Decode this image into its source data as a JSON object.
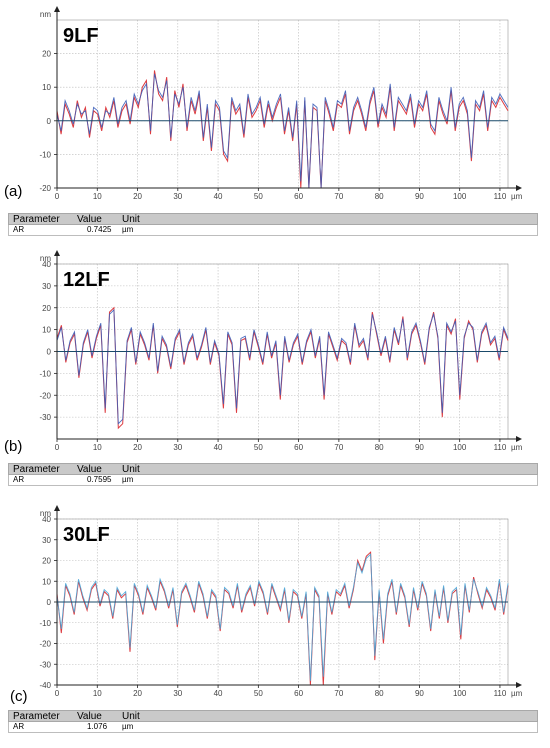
{
  "chart_data": [
    {
      "type": "line",
      "panel_letter": "(a)",
      "sample_label": "9LF",
      "y_unit": "nm",
      "x_unit": "µm",
      "xlim": [
        0,
        112
      ],
      "ylim": [
        -20,
        30
      ],
      "x_ticks": [
        0,
        10,
        20,
        30,
        40,
        50,
        60,
        70,
        80,
        90,
        100,
        110
      ],
      "y_ticks": [
        20,
        10,
        0,
        -10,
        -20
      ],
      "grid": true,
      "series": [
        {
          "color": "#d9262b",
          "values": [
            3,
            -4,
            5,
            2,
            -2,
            6,
            1,
            4,
            -5,
            3,
            2,
            -3,
            4,
            1,
            6,
            -2,
            3,
            5,
            -1,
            7,
            4,
            10,
            12,
            -4,
            15,
            8,
            6,
            13,
            -6,
            9,
            4,
            11,
            -3,
            6,
            2,
            8,
            -6,
            4,
            -9,
            5,
            3,
            -10,
            -12,
            6,
            2,
            4,
            -5,
            7,
            1,
            3,
            6,
            -2,
            5,
            0,
            4,
            7,
            -4,
            3,
            -6,
            5,
            -20,
            6,
            -24,
            4,
            3,
            -22,
            6,
            2,
            -3,
            5,
            4,
            8,
            -4,
            3,
            6,
            2,
            -3,
            5,
            9,
            -2,
            4,
            1,
            10,
            -3,
            6,
            4,
            2,
            7,
            -2,
            5,
            3,
            8,
            -2,
            -4,
            6,
            2,
            -1,
            9,
            -3,
            4,
            6,
            2,
            -12,
            5,
            3,
            8,
            -3,
            6,
            4,
            7,
            5,
            3
          ]
        },
        {
          "color": "#3b5db8",
          "values": [
            2,
            -3,
            6,
            3,
            -1,
            5,
            2,
            3,
            -4,
            4,
            3,
            -2,
            3,
            2,
            7,
            -1,
            4,
            6,
            0,
            8,
            5,
            9,
            11,
            -3,
            14,
            9,
            7,
            12,
            -5,
            8,
            5,
            10,
            -2,
            7,
            3,
            9,
            -5,
            5,
            -8,
            6,
            4,
            -9,
            -11,
            7,
            3,
            5,
            -4,
            8,
            2,
            4,
            7,
            -1,
            6,
            1,
            5,
            8,
            -3,
            4,
            -5,
            6,
            -18,
            7,
            -22,
            5,
            4,
            -20,
            7,
            3,
            -2,
            6,
            5,
            9,
            -3,
            4,
            7,
            3,
            -2,
            6,
            10,
            -1,
            5,
            2,
            11,
            -2,
            7,
            5,
            3,
            8,
            -1,
            6,
            4,
            9,
            -1,
            -3,
            7,
            3,
            0,
            10,
            -2,
            5,
            7,
            3,
            -11,
            6,
            4,
            9,
            -2,
            7,
            5,
            8,
            6,
            4
          ]
        }
      ]
    },
    {
      "type": "line",
      "panel_letter": "(b)",
      "sample_label": "12LF",
      "y_unit": "nm",
      "x_unit": "µm",
      "xlim": [
        0,
        112
      ],
      "ylim": [
        -40,
        40
      ],
      "x_ticks": [
        0,
        10,
        20,
        30,
        40,
        50,
        60,
        70,
        80,
        90,
        100,
        110
      ],
      "y_ticks": [
        40,
        30,
        20,
        10,
        0,
        -10,
        -20,
        -30
      ],
      "grid": true,
      "series": [
        {
          "color": "#d9262b",
          "values": [
            6,
            12,
            -5,
            4,
            8,
            -12,
            3,
            9,
            -3,
            6,
            12,
            -28,
            18,
            20,
            -35,
            -33,
            4,
            10,
            -6,
            8,
            3,
            -4,
            12,
            -10,
            6,
            2,
            -8,
            5,
            9,
            -6,
            3,
            7,
            -4,
            2,
            10,
            -6,
            4,
            -2,
            -26,
            8,
            3,
            -28,
            5,
            6,
            -4,
            9,
            2,
            -6,
            8,
            -3,
            4,
            -22,
            6,
            -5,
            3,
            7,
            -6,
            4,
            9,
            -3,
            6,
            -22,
            8,
            2,
            -4,
            5,
            3,
            -6,
            12,
            2,
            5,
            -4,
            18,
            8,
            -2,
            6,
            -5,
            10,
            3,
            16,
            -4,
            8,
            12,
            4,
            -6,
            10,
            18,
            6,
            -30,
            12,
            8,
            15,
            -22,
            6,
            14,
            10,
            -5,
            8,
            12,
            3,
            6,
            -4,
            10,
            5
          ]
        },
        {
          "color": "#3b5db8",
          "values": [
            5,
            11,
            -4,
            5,
            9,
            -11,
            4,
            10,
            -2,
            7,
            13,
            -26,
            17,
            19,
            -33,
            -31,
            5,
            11,
            -5,
            9,
            4,
            -3,
            13,
            -9,
            7,
            3,
            -7,
            6,
            10,
            -5,
            4,
            8,
            -3,
            3,
            11,
            -5,
            5,
            -1,
            -24,
            9,
            4,
            -26,
            6,
            7,
            -3,
            10,
            3,
            -5,
            9,
            -2,
            5,
            -20,
            7,
            -4,
            4,
            8,
            -5,
            5,
            10,
            -2,
            7,
            -20,
            9,
            3,
            -3,
            6,
            4,
            -5,
            13,
            3,
            6,
            -3,
            17,
            9,
            -1,
            7,
            -4,
            11,
            4,
            15,
            -3,
            9,
            13,
            5,
            -5,
            11,
            17,
            7,
            -28,
            13,
            9,
            14,
            -20,
            7,
            13,
            11,
            -4,
            9,
            13,
            4,
            7,
            -3,
            11,
            6
          ]
        }
      ]
    },
    {
      "type": "line",
      "panel_letter": "(c)",
      "sample_label": "30LF",
      "y_unit": "nm",
      "x_unit": "µm",
      "xlim": [
        0,
        112
      ],
      "ylim": [
        -40,
        40
      ],
      "x_ticks": [
        0,
        10,
        20,
        30,
        40,
        50,
        60,
        70,
        80,
        90,
        100,
        110
      ],
      "y_ticks": [
        40,
        30,
        20,
        10,
        0,
        -10,
        -20,
        -30,
        -40
      ],
      "grid": true,
      "series": [
        {
          "color": "#d9262b",
          "values": [
            4,
            -15,
            8,
            3,
            -6,
            10,
            2,
            -4,
            6,
            9,
            -2,
            5,
            3,
            -8,
            6,
            2,
            4,
            -24,
            8,
            3,
            -6,
            7,
            2,
            -4,
            10,
            5,
            -3,
            6,
            -12,
            4,
            8,
            2,
            -5,
            9,
            3,
            -8,
            5,
            2,
            -14,
            6,
            4,
            -3,
            8,
            -5,
            3,
            7,
            -2,
            9,
            4,
            -6,
            8,
            2,
            -4,
            6,
            -10,
            5,
            3,
            -8,
            4,
            -42,
            6,
            2,
            -40,
            4,
            -6,
            5,
            3,
            8,
            -3,
            6,
            20,
            15,
            22,
            24,
            -28,
            5,
            -20,
            3,
            10,
            -6,
            8,
            2,
            -12,
            6,
            -4,
            9,
            3,
            -14,
            5,
            -8,
            7,
            -10,
            4,
            6,
            -18,
            8,
            -5,
            12,
            4,
            -3,
            6,
            2,
            -4,
            10,
            -6,
            8
          ]
        },
        {
          "color": "#4aa6d8",
          "values": [
            3,
            -13,
            9,
            4,
            -5,
            11,
            3,
            -3,
            7,
            10,
            -1,
            6,
            4,
            -7,
            7,
            3,
            5,
            -22,
            9,
            4,
            -5,
            8,
            3,
            -3,
            11,
            6,
            -2,
            7,
            -11,
            5,
            9,
            3,
            -4,
            10,
            4,
            -7,
            6,
            3,
            -13,
            7,
            5,
            -2,
            9,
            -4,
            4,
            8,
            -1,
            10,
            5,
            -5,
            9,
            3,
            -3,
            7,
            -9,
            6,
            4,
            -7,
            5,
            -38,
            7,
            3,
            -36,
            5,
            -5,
            6,
            4,
            9,
            -2,
            7,
            19,
            14,
            21,
            23,
            -26,
            6,
            -18,
            4,
            11,
            -5,
            9,
            3,
            -11,
            7,
            -3,
            10,
            4,
            -13,
            6,
            -7,
            8,
            -9,
            5,
            7,
            -16,
            9,
            -4,
            11,
            5,
            -2,
            7,
            3,
            -3,
            11,
            -5,
            9
          ]
        }
      ]
    }
  ],
  "tables": [
    {
      "headers": {
        "parameter": "Parameter",
        "value": "Value",
        "unit": "Unit"
      },
      "row": {
        "parameter": "AR",
        "value": "0.7425",
        "unit": "µm"
      }
    },
    {
      "headers": {
        "parameter": "Parameter",
        "value": "Value",
        "unit": "Unit"
      },
      "row": {
        "parameter": "AR",
        "value": "0.7595",
        "unit": "µm"
      }
    },
    {
      "headers": {
        "parameter": "Parameter",
        "value": "Value",
        "unit": "Unit"
      },
      "row": {
        "parameter": "AR",
        "value": "1.076",
        "unit": "µm"
      }
    }
  ]
}
